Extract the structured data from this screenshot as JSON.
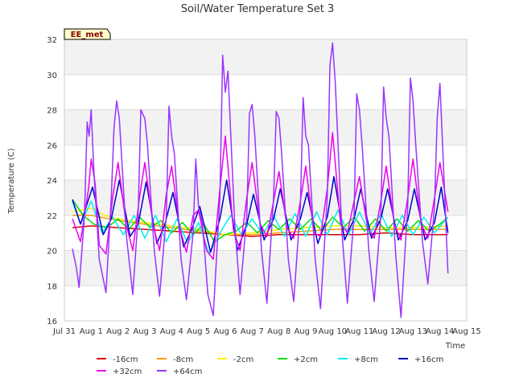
{
  "chart_data": {
    "type": "line",
    "title": "Soil/Water Temperature Set 3",
    "xlabel": "Time",
    "ylabel": "Temperature (C)",
    "badge": "EE_met",
    "ylim": [
      16,
      32
    ],
    "yticks": [
      16,
      18,
      20,
      22,
      24,
      26,
      28,
      30,
      32
    ],
    "xlim": [
      0,
      15
    ],
    "xticks": [
      {
        "value": 0,
        "label": "Jul 31"
      },
      {
        "value": 1,
        "label": "Aug 1"
      },
      {
        "value": 2,
        "label": "Aug 2"
      },
      {
        "value": 3,
        "label": "Aug 3"
      },
      {
        "value": 4,
        "label": "Aug 4"
      },
      {
        "value": 5,
        "label": "Aug 5"
      },
      {
        "value": 6,
        "label": "Aug 6"
      },
      {
        "value": 7,
        "label": "Aug 7"
      },
      {
        "value": 8,
        "label": "Aug 8"
      },
      {
        "value": 9,
        "label": "Aug 9"
      },
      {
        "value": 10,
        "label": "Aug 10"
      },
      {
        "value": 11,
        "label": "Aug 11"
      },
      {
        "value": 12,
        "label": "Aug 12"
      },
      {
        "value": 13,
        "label": "Aug 13"
      },
      {
        "value": 14,
        "label": "Aug 14"
      },
      {
        "value": 15,
        "label": "Aug 15"
      }
    ],
    "grid": true,
    "legend_position": "bottom",
    "series": [
      {
        "name": "-16cm",
        "color": "#dd0000",
        "x": [
          0.3,
          1,
          2,
          3,
          4,
          5,
          6,
          7,
          8,
          9,
          10,
          11,
          12,
          13,
          14.3
        ],
        "y": [
          21.3,
          21.4,
          21.3,
          21.2,
          21.1,
          21.0,
          20.9,
          20.8,
          20.9,
          20.9,
          20.9,
          20.9,
          21.0,
          20.9,
          20.9
        ]
      },
      {
        "name": "-8cm",
        "color": "#ff9900",
        "x": [
          0.3,
          1,
          2,
          3,
          4,
          5,
          6,
          7,
          8,
          9,
          10,
          11,
          12,
          13,
          14.3
        ],
        "y": [
          22.0,
          22.0,
          21.7,
          21.5,
          21.3,
          21.1,
          20.9,
          20.9,
          21.0,
          21.1,
          21.2,
          21.2,
          21.2,
          21.2,
          21.2
        ]
      },
      {
        "name": "-2cm",
        "color": "#ffee00",
        "x": [
          0.3,
          0.6,
          1,
          1.5,
          2,
          3,
          4,
          5,
          6,
          7,
          8,
          9,
          10,
          11,
          12,
          13,
          14.3
        ],
        "y": [
          22.2,
          22.3,
          22.4,
          22.0,
          21.8,
          21.6,
          21.4,
          21.2,
          20.9,
          21.0,
          21.2,
          21.3,
          21.4,
          21.4,
          21.3,
          21.3,
          21.4
        ]
      },
      {
        "name": "+2cm",
        "color": "#00dd00",
        "x": [
          0.3,
          0.7,
          1.1,
          1.6,
          2.0,
          2.4,
          2.8,
          3.2,
          3.6,
          4.0,
          4.4,
          4.8,
          5.2,
          5.6,
          6.0,
          6.4,
          6.8,
          7.2,
          7.6,
          8.0,
          8.4,
          8.8,
          9.2,
          9.6,
          10.0,
          10.4,
          10.8,
          11.2,
          11.6,
          12.0,
          12.4,
          12.8,
          13.2,
          13.6,
          14.0,
          14.3
        ],
        "y": [
          22.9,
          22.0,
          21.5,
          21.3,
          21.8,
          21.2,
          21.9,
          21.3,
          21.7,
          21.0,
          21.6,
          20.9,
          21.5,
          20.5,
          20.9,
          21.1,
          21.6,
          21.0,
          21.7,
          21.2,
          21.8,
          21.2,
          21.8,
          21.1,
          21.9,
          21.3,
          21.9,
          21.1,
          21.8,
          21.1,
          21.8,
          21.1,
          21.7,
          21.1,
          21.5,
          21.9
        ]
      },
      {
        "name": "+8cm",
        "color": "#00eeee",
        "x": [
          0.3,
          0.6,
          1.0,
          1.4,
          1.8,
          2.2,
          2.6,
          3.0,
          3.4,
          3.8,
          4.2,
          4.6,
          5.0,
          5.4,
          5.8,
          6.2,
          6.6,
          7.0,
          7.4,
          7.8,
          8.2,
          8.6,
          9.0,
          9.4,
          9.8,
          10.2,
          10.6,
          11.0,
          11.4,
          11.8,
          12.2,
          12.6,
          13.0,
          13.4,
          13.8,
          14.3
        ],
        "y": [
          22.8,
          21.5,
          22.8,
          21.0,
          21.9,
          20.9,
          22.0,
          20.7,
          22.0,
          20.5,
          21.8,
          20.4,
          21.6,
          19.8,
          21.0,
          22.0,
          20.9,
          21.8,
          20.9,
          22.0,
          20.8,
          22.1,
          20.8,
          22.2,
          20.9,
          22.3,
          20.9,
          22.2,
          20.9,
          22.1,
          20.8,
          22.0,
          20.9,
          21.9,
          21.0,
          21.9
        ]
      },
      {
        "name": "+16cm",
        "color": "#0000cc",
        "x": [
          0.3,
          0.6,
          1.05,
          1.45,
          1.75,
          2.05,
          2.45,
          2.75,
          3.05,
          3.45,
          3.75,
          4.05,
          4.45,
          4.75,
          5.05,
          5.45,
          5.8,
          6.05,
          6.45,
          6.8,
          7.05,
          7.45,
          7.8,
          8.05,
          8.45,
          8.8,
          9.05,
          9.45,
          9.8,
          10.05,
          10.45,
          10.8,
          11.05,
          11.45,
          11.8,
          12.05,
          12.45,
          12.8,
          13.05,
          13.45,
          13.8,
          14.05,
          14.3
        ],
        "y": [
          22.9,
          21.5,
          23.6,
          20.9,
          21.8,
          24.0,
          20.8,
          21.5,
          23.9,
          20.4,
          21.5,
          23.3,
          20.2,
          21.2,
          22.5,
          19.9,
          21.8,
          24.0,
          20.0,
          21.5,
          23.2,
          20.6,
          21.8,
          23.5,
          20.6,
          21.8,
          23.3,
          20.4,
          21.9,
          24.2,
          20.6,
          21.8,
          23.5,
          20.7,
          21.8,
          23.5,
          20.6,
          21.7,
          23.5,
          20.6,
          21.6,
          23.6,
          21.0
        ]
      },
      {
        "name": "+32cm",
        "color": "#ee00ee",
        "x": [
          0.3,
          0.6,
          0.9,
          1.0,
          1.15,
          1.3,
          1.55,
          1.8,
          2.0,
          2.3,
          2.55,
          2.8,
          3.0,
          3.3,
          3.55,
          3.8,
          4.0,
          4.3,
          4.55,
          4.8,
          5.0,
          5.3,
          5.55,
          5.8,
          6.0,
          6.3,
          6.55,
          6.8,
          7.0,
          7.3,
          7.55,
          7.8,
          8.0,
          8.3,
          8.55,
          8.8,
          9.0,
          9.3,
          9.55,
          9.8,
          10.0,
          10.3,
          10.55,
          10.8,
          11.0,
          11.3,
          11.55,
          11.8,
          12.0,
          12.3,
          12.55,
          12.8,
          13.0,
          13.3,
          13.55,
          13.8,
          14.0,
          14.3
        ],
        "y": [
          21.8,
          20.5,
          23.5,
          25.2,
          23.8,
          20.3,
          19.8,
          23.0,
          25.0,
          21.5,
          20.0,
          23.0,
          25.0,
          21.5,
          20.0,
          23.2,
          24.8,
          21.3,
          19.9,
          22.0,
          22.3,
          20.0,
          19.5,
          23.5,
          26.5,
          21.2,
          20.0,
          23.0,
          25.0,
          21.5,
          20.8,
          22.8,
          24.5,
          21.3,
          20.7,
          22.8,
          24.8,
          21.0,
          20.8,
          23.5,
          26.7,
          21.5,
          21.0,
          22.8,
          24.2,
          21.3,
          20.7,
          22.8,
          24.8,
          21.5,
          20.6,
          23.0,
          25.2,
          21.5,
          20.7,
          23.0,
          25.0,
          22.2
        ]
      },
      {
        "name": "+64cm",
        "color": "#9933ff",
        "x": [
          0.3,
          0.45,
          0.55,
          0.75,
          0.85,
          0.92,
          1.0,
          1.1,
          1.3,
          1.55,
          1.75,
          1.85,
          1.95,
          2.05,
          2.3,
          2.55,
          2.75,
          2.85,
          3.0,
          3.1,
          3.35,
          3.55,
          3.8,
          3.9,
          4.0,
          4.1,
          4.35,
          4.55,
          4.8,
          4.9,
          5.0,
          5.15,
          5.35,
          5.55,
          5.8,
          5.9,
          6.0,
          6.1,
          6.35,
          6.55,
          6.8,
          6.9,
          7.0,
          7.1,
          7.35,
          7.55,
          7.8,
          7.9,
          8.0,
          8.1,
          8.35,
          8.55,
          8.8,
          8.9,
          9.0,
          9.1,
          9.35,
          9.55,
          9.8,
          9.9,
          10.0,
          10.1,
          10.35,
          10.55,
          10.8,
          10.9,
          11.0,
          11.1,
          11.35,
          11.55,
          11.8,
          11.9,
          12.0,
          12.1,
          12.35,
          12.55,
          12.8,
          12.9,
          13.0,
          13.1,
          13.35,
          13.55,
          13.8,
          13.9,
          14.0,
          14.1,
          14.3
        ],
        "y": [
          20.1,
          19.0,
          17.9,
          22.0,
          27.3,
          26.5,
          28.0,
          24.5,
          19.5,
          17.6,
          23.0,
          27.0,
          28.5,
          27.5,
          21.0,
          17.5,
          22.0,
          28.0,
          27.5,
          26.0,
          20.0,
          17.4,
          22.0,
          28.2,
          26.5,
          25.5,
          19.5,
          17.2,
          21.0,
          25.2,
          22.5,
          21.5,
          17.5,
          16.3,
          23.0,
          31.1,
          29.0,
          30.2,
          21.5,
          17.5,
          22.0,
          27.8,
          28.3,
          26.5,
          20.0,
          17.0,
          23.0,
          27.9,
          27.5,
          25.5,
          19.5,
          17.1,
          22.5,
          28.7,
          26.5,
          26.0,
          19.5,
          16.7,
          23.0,
          30.5,
          31.8,
          29.5,
          21.0,
          17.0,
          22.0,
          28.9,
          28.0,
          26.0,
          20.0,
          17.1,
          22.0,
          29.3,
          27.5,
          26.5,
          19.8,
          16.2,
          22.5,
          29.8,
          28.5,
          26.0,
          20.5,
          18.1,
          22.5,
          27.5,
          29.5,
          26.0,
          18.7
        ]
      }
    ]
  }
}
